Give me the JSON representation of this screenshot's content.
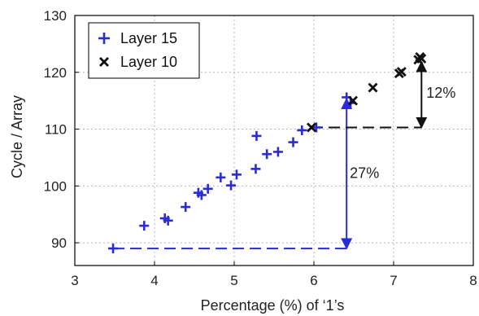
{
  "chart_data": {
    "type": "scatter",
    "title": "",
    "xlabel": "Percentage (%) of ‘1’s",
    "ylabel": "Cycle / Array",
    "xlim": [
      3,
      8
    ],
    "ylim": [
      86,
      130
    ],
    "xticks": [
      "3",
      "4",
      "5",
      "6",
      "7",
      "8"
    ],
    "yticks": [
      "90",
      "100",
      "110",
      "120",
      "130"
    ],
    "grid": true,
    "legend_position": "top-left",
    "series": [
      {
        "name": "Layer 15",
        "marker": "plus",
        "color": "#2b2bd6",
        "points": [
          [
            3.48,
            89.0
          ],
          [
            3.87,
            93.0
          ],
          [
            4.13,
            94.3
          ],
          [
            4.17,
            93.9
          ],
          [
            4.39,
            96.3
          ],
          [
            4.55,
            98.8
          ],
          [
            4.59,
            98.4
          ],
          [
            4.67,
            99.5
          ],
          [
            4.83,
            101.5
          ],
          [
            4.96,
            100.1
          ],
          [
            5.03,
            102.0
          ],
          [
            5.27,
            103.0
          ],
          [
            5.28,
            108.8
          ],
          [
            5.41,
            105.6
          ],
          [
            5.55,
            106.0
          ],
          [
            5.74,
            107.7
          ],
          [
            5.85,
            109.8
          ],
          [
            6.03,
            110.3
          ],
          [
            6.41,
            115.6
          ],
          [
            6.46,
            114.6
          ]
        ]
      },
      {
        "name": "Layer 10",
        "marker": "x",
        "color": "#111111",
        "points": [
          [
            5.97,
            110.3
          ],
          [
            6.49,
            115.0
          ],
          [
            6.74,
            117.3
          ],
          [
            7.07,
            119.8
          ],
          [
            7.1,
            120.1
          ],
          [
            7.31,
            122.2
          ],
          [
            7.33,
            122.7
          ],
          [
            7.35,
            122.4
          ]
        ]
      }
    ],
    "annotations": [
      {
        "text": "27%",
        "color": "#2b2bd6"
      },
      {
        "text": "12%",
        "color": "#111111"
      }
    ]
  }
}
